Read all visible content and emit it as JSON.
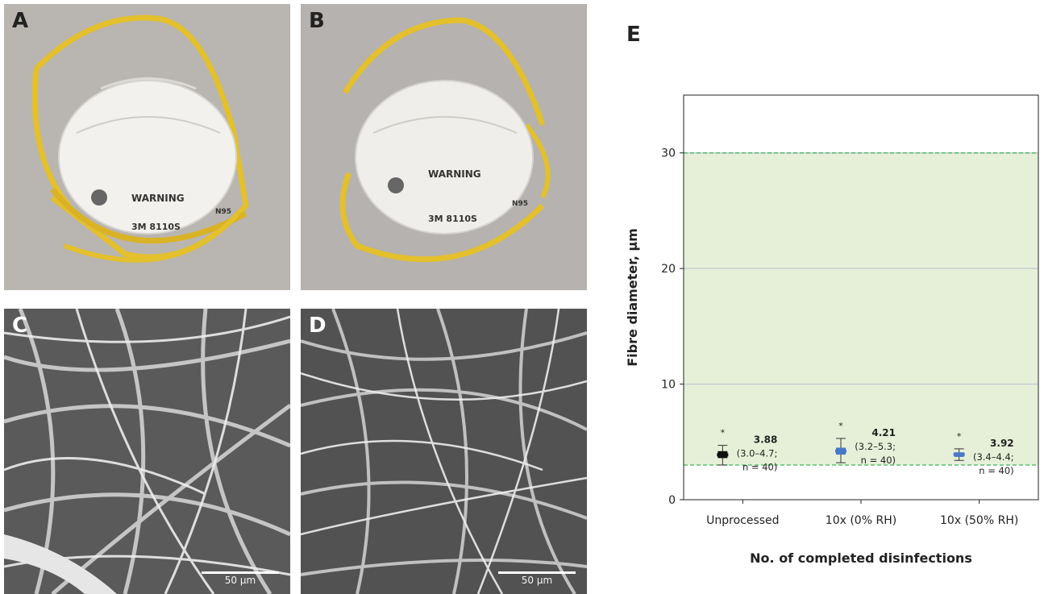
{
  "panels": [
    {
      "letter": "A",
      "icon": "n95-mask-photo-unprocessed"
    },
    {
      "letter": "B",
      "icon": "n95-mask-photo-processed"
    },
    {
      "letter": "C",
      "icon": "sem-fibre-image-unprocessed",
      "scale_label": "50 µm"
    },
    {
      "letter": "D",
      "icon": "sem-fibre-image-processed",
      "scale_label": "50 µm"
    }
  ],
  "mask_text": {
    "warning": "WARNING",
    "model": "3M 8110S",
    "rating": "N95"
  },
  "chart_panel_letter": "E",
  "chart_data": {
    "type": "scatter",
    "ylabel": "Fibre diameter, µm",
    "xlabel": "No. of completed disinfections",
    "categories": [
      "Unprocessed",
      "10x (0% RH)",
      "10x (50% RH)"
    ],
    "ylim": [
      0,
      35
    ],
    "yticks": [
      0,
      10,
      20,
      30
    ],
    "grid": true,
    "shaded_band": {
      "from": 3.0,
      "to": 30.0,
      "color": "#e6f0d8",
      "line_color": "#3cb35a"
    },
    "points": [
      {
        "category": "Unprocessed",
        "median": 3.88,
        "q1": 3.6,
        "q3": 4.2,
        "low": 3.0,
        "high": 4.7,
        "label_value": "3.88",
        "label_range": "(3.0–4.7;",
        "label_n": "n = 40)",
        "marker": "*",
        "color": "#111111"
      },
      {
        "category": "10x (0% RH)",
        "median": 4.21,
        "q1": 3.9,
        "q3": 4.5,
        "low": 3.2,
        "high": 5.3,
        "label_value": "4.21",
        "label_range": "(3.2–5.3;",
        "label_n": "n = 40)",
        "marker": "*",
        "color": "#4a78c8"
      },
      {
        "category": "10x (50% RH)",
        "median": 3.92,
        "q1": 3.7,
        "q3": 4.1,
        "low": 3.4,
        "high": 4.4,
        "label_value": "3.92",
        "label_range": "(3.4–4.4;",
        "label_n": "n = 40)",
        "marker": "*",
        "color": "#4a78c8"
      }
    ]
  }
}
